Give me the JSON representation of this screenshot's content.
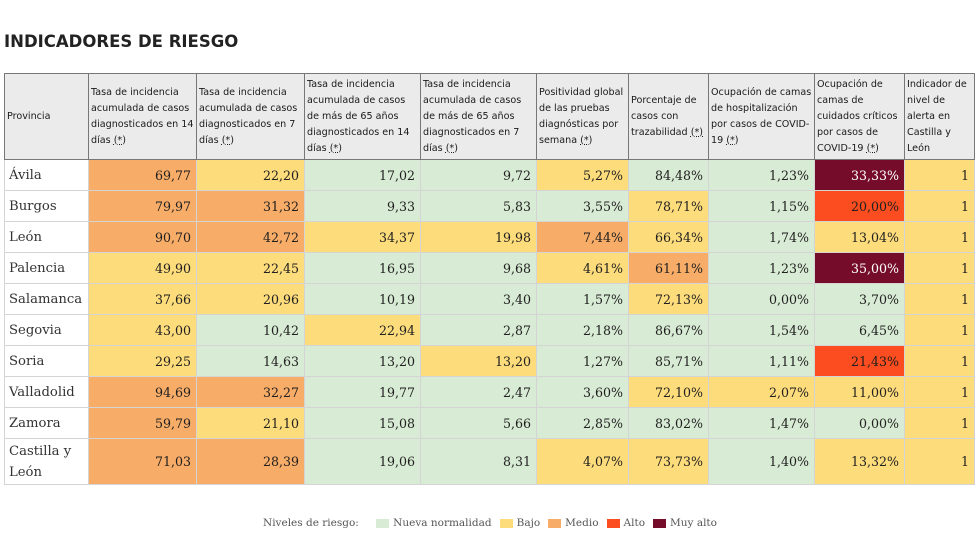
{
  "page": {
    "title": "INDICADORES DE RIESGO"
  },
  "columns": [
    {
      "text": "Provincia",
      "ast": ""
    },
    {
      "text": "Tasa de incidencia acumulada de casos diagnosticados en 14 días ",
      "ast": "(*)"
    },
    {
      "text": "Tasa de incidencia acumulada de casos diagnosticados en 7 días ",
      "ast": "(*)"
    },
    {
      "text": "Tasa de incidencia acumulada de casos de más de 65 años diagnosticados en 14 días ",
      "ast": "(*)"
    },
    {
      "text": "Tasa de incidencia acumulada de casos de más de 65 años diagnosticados en 7 días ",
      "ast": "(*)"
    },
    {
      "text": "Positividad global de las pruebas diagnósticas por semana ",
      "ast": "(*)"
    },
    {
      "text": "Porcentaje de casos con trazabilidad ",
      "ast": "(*)"
    },
    {
      "text": "Ocupación de camas de hospitalización por casos de COVID-19 ",
      "ast": "(*)"
    },
    {
      "text": "Ocupación de camas de cuidados críticos por casos de COVID-19 ",
      "ast": "(*)"
    },
    {
      "text": "Indicador de nivel de alerta en Castilla y León",
      "ast": ""
    }
  ],
  "rows": [
    {
      "province": "Ávila",
      "cells": [
        {
          "value": "69,77",
          "level": "medio"
        },
        {
          "value": "22,20",
          "level": "bajo"
        },
        {
          "value": "17,02",
          "level": "nueva"
        },
        {
          "value": "9,72",
          "level": "nueva"
        },
        {
          "value": "5,27%",
          "level": "bajo"
        },
        {
          "value": "84,48%",
          "level": "nueva"
        },
        {
          "value": "1,23%",
          "level": "nueva"
        },
        {
          "value": "33,33%",
          "level": "muyalto"
        },
        {
          "value": "1",
          "level": "bajo"
        }
      ]
    },
    {
      "province": "Burgos",
      "cells": [
        {
          "value": "79,97",
          "level": "medio"
        },
        {
          "value": "31,32",
          "level": "medio"
        },
        {
          "value": "9,33",
          "level": "nueva"
        },
        {
          "value": "5,83",
          "level": "nueva"
        },
        {
          "value": "3,55%",
          "level": "nueva"
        },
        {
          "value": "78,71%",
          "level": "bajo"
        },
        {
          "value": "1,15%",
          "level": "nueva"
        },
        {
          "value": "20,00%",
          "level": "alto"
        },
        {
          "value": "1",
          "level": "bajo"
        }
      ]
    },
    {
      "province": "León",
      "cells": [
        {
          "value": "90,70",
          "level": "medio"
        },
        {
          "value": "42,72",
          "level": "medio"
        },
        {
          "value": "34,37",
          "level": "bajo"
        },
        {
          "value": "19,98",
          "level": "bajo"
        },
        {
          "value": "7,44%",
          "level": "medio"
        },
        {
          "value": "66,34%",
          "level": "bajo"
        },
        {
          "value": "1,74%",
          "level": "nueva"
        },
        {
          "value": "13,04%",
          "level": "bajo"
        },
        {
          "value": "1",
          "level": "bajo"
        }
      ]
    },
    {
      "province": "Palencia",
      "cells": [
        {
          "value": "49,90",
          "level": "bajo"
        },
        {
          "value": "22,45",
          "level": "bajo"
        },
        {
          "value": "16,95",
          "level": "nueva"
        },
        {
          "value": "9,68",
          "level": "nueva"
        },
        {
          "value": "4,61%",
          "level": "bajo"
        },
        {
          "value": "61,11%",
          "level": "medio"
        },
        {
          "value": "1,23%",
          "level": "nueva"
        },
        {
          "value": "35,00%",
          "level": "muyalto"
        },
        {
          "value": "1",
          "level": "bajo"
        }
      ]
    },
    {
      "province": "Salamanca",
      "cells": [
        {
          "value": "37,66",
          "level": "bajo"
        },
        {
          "value": "20,96",
          "level": "bajo"
        },
        {
          "value": "10,19",
          "level": "nueva"
        },
        {
          "value": "3,40",
          "level": "nueva"
        },
        {
          "value": "1,57%",
          "level": "nueva"
        },
        {
          "value": "72,13%",
          "level": "bajo"
        },
        {
          "value": "0,00%",
          "level": "nueva"
        },
        {
          "value": "3,70%",
          "level": "nueva"
        },
        {
          "value": "1",
          "level": "bajo"
        }
      ]
    },
    {
      "province": "Segovia",
      "cells": [
        {
          "value": "43,00",
          "level": "bajo"
        },
        {
          "value": "10,42",
          "level": "nueva"
        },
        {
          "value": "22,94",
          "level": "bajo"
        },
        {
          "value": "2,87",
          "level": "nueva"
        },
        {
          "value": "2,18%",
          "level": "nueva"
        },
        {
          "value": "86,67%",
          "level": "nueva"
        },
        {
          "value": "1,54%",
          "level": "nueva"
        },
        {
          "value": "6,45%",
          "level": "nueva"
        },
        {
          "value": "1",
          "level": "bajo"
        }
      ]
    },
    {
      "province": "Soria",
      "cells": [
        {
          "value": "29,25",
          "level": "bajo"
        },
        {
          "value": "14,63",
          "level": "nueva"
        },
        {
          "value": "13,20",
          "level": "nueva"
        },
        {
          "value": "13,20",
          "level": "bajo"
        },
        {
          "value": "1,27%",
          "level": "nueva"
        },
        {
          "value": "85,71%",
          "level": "nueva"
        },
        {
          "value": "1,11%",
          "level": "nueva"
        },
        {
          "value": "21,43%",
          "level": "alto"
        },
        {
          "value": "1",
          "level": "bajo"
        }
      ]
    },
    {
      "province": "Valladolid",
      "cells": [
        {
          "value": "94,69",
          "level": "medio"
        },
        {
          "value": "32,27",
          "level": "medio"
        },
        {
          "value": "19,77",
          "level": "nueva"
        },
        {
          "value": "2,47",
          "level": "nueva"
        },
        {
          "value": "3,60%",
          "level": "nueva"
        },
        {
          "value": "72,10%",
          "level": "bajo"
        },
        {
          "value": "2,07%",
          "level": "bajo"
        },
        {
          "value": "11,00%",
          "level": "bajo"
        },
        {
          "value": "1",
          "level": "bajo"
        }
      ]
    },
    {
      "province": "Zamora",
      "cells": [
        {
          "value": "59,79",
          "level": "medio"
        },
        {
          "value": "21,10",
          "level": "bajo"
        },
        {
          "value": "15,08",
          "level": "nueva"
        },
        {
          "value": "5,66",
          "level": "nueva"
        },
        {
          "value": "2,85%",
          "level": "nueva"
        },
        {
          "value": "83,02%",
          "level": "nueva"
        },
        {
          "value": "1,47%",
          "level": "nueva"
        },
        {
          "value": "0,00%",
          "level": "nueva"
        },
        {
          "value": "1",
          "level": "bajo"
        }
      ]
    },
    {
      "province": "Castilla y León",
      "cells": [
        {
          "value": "71,03",
          "level": "medio"
        },
        {
          "value": "28,39",
          "level": "medio"
        },
        {
          "value": "19,06",
          "level": "nueva"
        },
        {
          "value": "8,31",
          "level": "nueva"
        },
        {
          "value": "4,07%",
          "level": "bajo"
        },
        {
          "value": "73,73%",
          "level": "bajo"
        },
        {
          "value": "1,40%",
          "level": "nueva"
        },
        {
          "value": "13,32%",
          "level": "bajo"
        },
        {
          "value": "1",
          "level": "bajo"
        }
      ]
    }
  ],
  "legend": {
    "label": "Niveles de riesgo:",
    "items": [
      {
        "level": "nueva",
        "label": "Nueva normalidad",
        "color": "#d8ebd4"
      },
      {
        "level": "bajo",
        "label": "Bajo",
        "color": "#fddc7c"
      },
      {
        "level": "medio",
        "label": "Medio",
        "color": "#f7ac68"
      },
      {
        "level": "alto",
        "label": "Alto",
        "color": "#fb4d1f"
      },
      {
        "level": "muyalto",
        "label": "Muy alto",
        "color": "#750d2a"
      }
    ]
  }
}
